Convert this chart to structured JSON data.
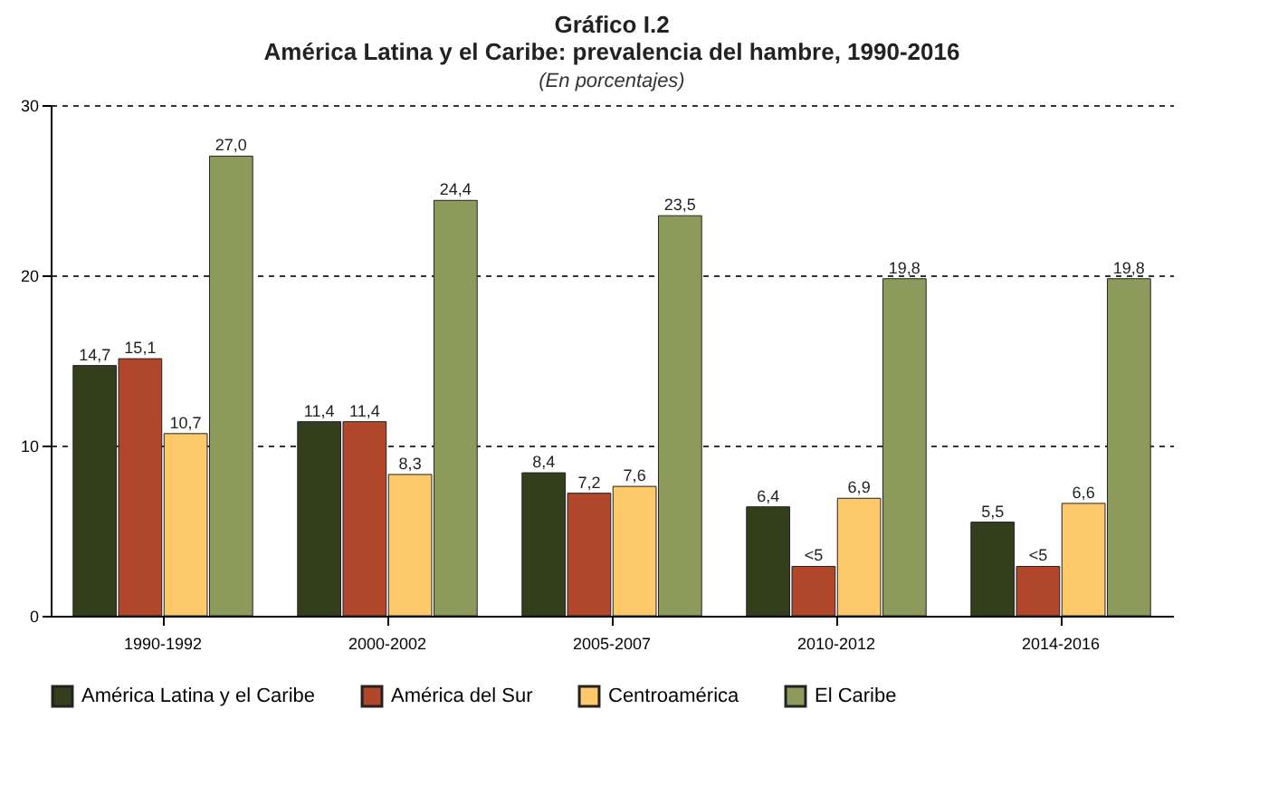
{
  "chart_data": {
    "type": "bar",
    "title": "Gráfico I.2",
    "subtitle": "América Latina y el Caribe: prevalencia del hambre, 1990-2016",
    "annotations": [
      "(En porcentajes)"
    ],
    "categories": [
      "1990-1992",
      "2000-2002",
      "2005-2007",
      "2010-2012",
      "2014-2016"
    ],
    "series": [
      {
        "name": "América Latina y el Caribe",
        "color": "#333f1c",
        "values": [
          14.7,
          11.4,
          8.4,
          6.4,
          5.5
        ],
        "value_labels": [
          "14,7",
          "11,4",
          "8,4",
          "6,4",
          "5,5"
        ]
      },
      {
        "name": "América del Sur",
        "color": "#b0462a",
        "values": [
          15.1,
          11.4,
          7.2,
          2.9,
          2.9
        ],
        "value_labels": [
          "15,1",
          "11,4",
          "7,2",
          "<5",
          "<5"
        ]
      },
      {
        "name": "Centroamérica",
        "color": "#fdc96b",
        "values": [
          10.7,
          8.3,
          7.6,
          6.9,
          6.6
        ],
        "value_labels": [
          "10,7",
          "8,3",
          "7,6",
          "6,9",
          "6,6"
        ]
      },
      {
        "name": "El Caribe",
        "color": "#8c9a5b",
        "values": [
          27.0,
          24.4,
          23.5,
          19.8,
          19.8
        ],
        "value_labels": [
          "27,0",
          "24,4",
          "23,5",
          "19,8",
          "19,8"
        ]
      }
    ],
    "ylim": [
      0,
      30
    ],
    "yticks": [
      0,
      10,
      20,
      30
    ],
    "grid": "y",
    "legend": "bottom"
  }
}
